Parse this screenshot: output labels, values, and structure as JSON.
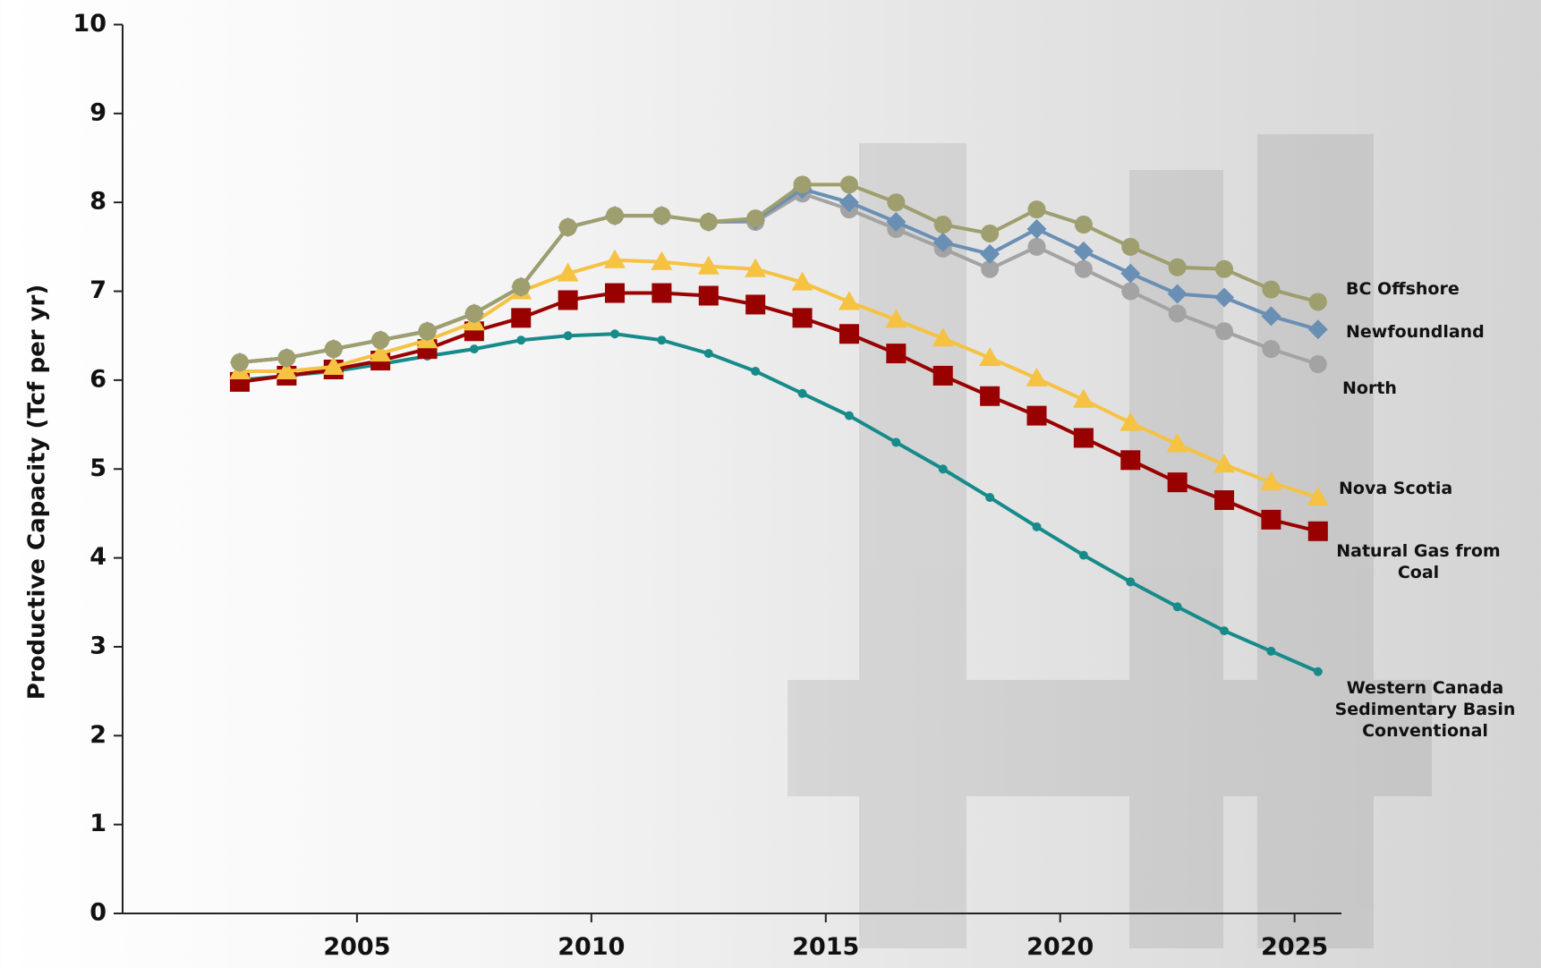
{
  "chart_data": {
    "type": "line",
    "y_label": "Productive Capacity (Tcf per yr)",
    "x": [
      2002.5,
      2003.5,
      2004.5,
      2005.5,
      2006.5,
      2007.5,
      2008.5,
      2009.5,
      2010.5,
      2011.5,
      2012.5,
      2013.5,
      2014.5,
      2015.5,
      2016.5,
      2017.5,
      2018.5,
      2019.5,
      2020.5,
      2021.5,
      2022.5,
      2023.5,
      2024.5,
      2025.5
    ],
    "xlim": [
      2000,
      2026
    ],
    "xticks": [
      2005,
      2010,
      2015,
      2020,
      2025
    ],
    "ylim": [
      0,
      10
    ],
    "yticks": [
      0,
      1,
      2,
      3,
      4,
      5,
      6,
      7,
      8,
      9,
      10
    ],
    "series": [
      {
        "name": "Western Canada Sedimentary Basin Conventional",
        "color": "#178a8a",
        "marker": "dot",
        "values": [
          6.0,
          6.05,
          6.1,
          6.18,
          6.27,
          6.35,
          6.45,
          6.5,
          6.52,
          6.45,
          6.3,
          6.1,
          5.85,
          5.6,
          5.3,
          5.0,
          4.68,
          4.35,
          4.03,
          3.73,
          3.45,
          3.18,
          2.95,
          2.72
        ]
      },
      {
        "name": "Natural Gas from Coal",
        "color": "#990000",
        "marker": "square",
        "values": [
          5.98,
          6.05,
          6.12,
          6.22,
          6.35,
          6.55,
          6.7,
          6.9,
          6.98,
          6.98,
          6.95,
          6.85,
          6.7,
          6.52,
          6.3,
          6.05,
          5.82,
          5.6,
          5.35,
          5.1,
          4.85,
          4.65,
          4.43,
          4.3
        ]
      },
      {
        "name": "Nova Scotia",
        "color": "#f5c242",
        "marker": "triangle",
        "values": [
          6.1,
          6.1,
          6.15,
          6.3,
          6.45,
          6.65,
          7.0,
          7.2,
          7.35,
          7.33,
          7.28,
          7.25,
          7.1,
          6.88,
          6.68,
          6.47,
          6.25,
          6.02,
          5.78,
          5.52,
          5.28,
          5.05,
          4.85,
          4.68
        ]
      },
      {
        "name": "North",
        "color": "#a3a3a3",
        "marker": "circle",
        "values": [
          6.2,
          6.25,
          6.35,
          6.45,
          6.55,
          6.75,
          7.05,
          7.72,
          7.85,
          7.85,
          7.78,
          7.78,
          8.1,
          7.92,
          7.7,
          7.48,
          7.25,
          7.5,
          7.25,
          7.0,
          6.75,
          6.55,
          6.35,
          6.18
        ]
      },
      {
        "name": "Newfoundland",
        "color": "#6a8fb5",
        "marker": "diamond",
        "values": [
          6.2,
          6.25,
          6.35,
          6.45,
          6.55,
          6.75,
          7.05,
          7.72,
          7.85,
          7.85,
          7.78,
          7.8,
          8.15,
          8.0,
          7.78,
          7.55,
          7.42,
          7.7,
          7.45,
          7.2,
          6.97,
          6.93,
          6.72,
          6.57
        ]
      },
      {
        "name": "BC Offshore",
        "color": "#9e9e6e",
        "marker": "circle",
        "values": [
          6.2,
          6.25,
          6.35,
          6.45,
          6.55,
          6.75,
          7.05,
          7.72,
          7.85,
          7.85,
          7.78,
          7.82,
          8.2,
          8.2,
          8.0,
          7.75,
          7.65,
          7.92,
          7.75,
          7.5,
          7.27,
          7.25,
          7.02,
          6.88
        ]
      }
    ]
  }
}
